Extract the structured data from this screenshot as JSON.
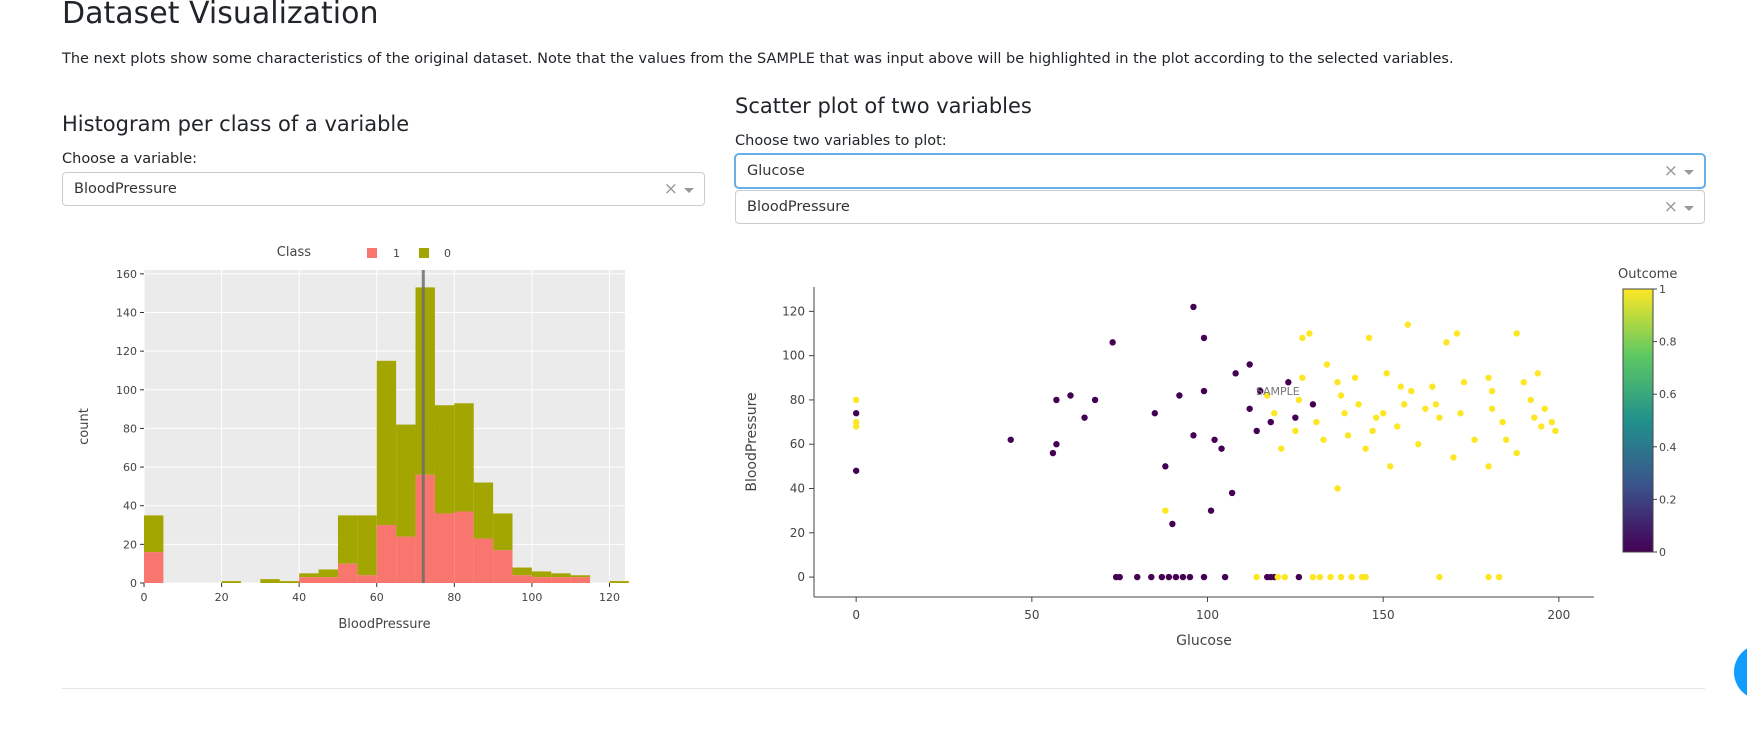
{
  "header": {
    "title": "Dataset Visualization",
    "intro": "The next plots show some characteristics of the original dataset. Note that the values from the SAMPLE that was input above will be highlighted in the plot according to the selected variables."
  },
  "histogram_section": {
    "title": "Histogram per class of a variable",
    "label": "Choose a variable:",
    "selected": "BloodPressure"
  },
  "scatter_section": {
    "title": "Scatter plot of two variables",
    "label": "Choose two variables to plot:",
    "selected_x": "Glucose",
    "selected_y": "BloodPressure"
  },
  "controls": {
    "clear_glyph": "×",
    "help_glyph": "?"
  },
  "colors": {
    "class_1": "#f8766d",
    "class_0": "#a3a500",
    "plot_bg": "#ebebeb",
    "focus": "#66afe9"
  },
  "chart_data": [
    {
      "type": "bar",
      "stacked": true,
      "xlabel": "BloodPressure",
      "ylabel": "count",
      "legend": {
        "title": "Class",
        "position": "top",
        "entries": [
          "1",
          "0"
        ]
      },
      "xlim": [
        0,
        124
      ],
      "ylim": [
        0,
        162
      ],
      "xticks": [
        0,
        20,
        40,
        60,
        80,
        100,
        120
      ],
      "yticks": [
        0,
        20,
        40,
        60,
        80,
        100,
        120,
        140,
        160
      ],
      "bin_width": 5,
      "bin_starts": [
        0,
        5,
        10,
        15,
        20,
        25,
        30,
        35,
        40,
        45,
        50,
        55,
        60,
        65,
        70,
        75,
        80,
        85,
        90,
        95,
        100,
        105,
        110,
        115,
        120
      ],
      "series": [
        {
          "name": "1",
          "values": [
            16,
            0,
            0,
            0,
            0,
            0,
            0,
            0,
            3,
            3,
            10,
            4,
            30,
            24,
            56,
            36,
            37,
            23,
            17,
            4,
            3,
            3,
            3,
            0,
            0
          ]
        },
        {
          "name": "0",
          "values": [
            19,
            0,
            0,
            0,
            1,
            0,
            2,
            1,
            2,
            4,
            25,
            31,
            85,
            58,
            97,
            56,
            56,
            29,
            19,
            4,
            3,
            2,
            1,
            0,
            1
          ]
        }
      ],
      "sample_marker_x": 72
    },
    {
      "type": "scatter",
      "xlabel": "Glucose",
      "ylabel": "BloodPressure",
      "xlim": [
        -12,
        210
      ],
      "ylim": [
        -9,
        131
      ],
      "xticks": [
        0,
        50,
        100,
        150,
        200
      ],
      "yticks": [
        0,
        20,
        40,
        60,
        80,
        100,
        120
      ],
      "colorbar": {
        "title": "Outcome",
        "ticks": [
          0,
          0.2,
          0.4,
          0.6,
          0.8,
          1
        ]
      },
      "sample_label": "SAMPLE",
      "sample_point": {
        "x": 120,
        "y": 84
      },
      "points": [
        [
          0,
          48,
          0
        ],
        [
          0,
          74,
          0
        ],
        [
          0,
          80,
          1
        ],
        [
          0,
          68,
          1
        ],
        [
          0,
          70,
          1
        ],
        [
          44,
          62,
          0
        ],
        [
          56,
          56,
          0
        ],
        [
          57,
          60,
          0
        ],
        [
          57,
          80,
          0
        ],
        [
          61,
          82,
          0
        ],
        [
          65,
          72,
          0
        ],
        [
          68,
          80,
          0
        ],
        [
          73,
          106,
          0
        ],
        [
          74,
          0,
          0
        ],
        [
          75,
          0,
          0
        ],
        [
          80,
          0,
          0
        ],
        [
          84,
          0,
          0
        ],
        [
          87,
          0,
          0
        ],
        [
          89,
          0,
          0
        ],
        [
          91,
          0,
          0
        ],
        [
          93,
          0,
          0
        ],
        [
          95,
          0,
          0
        ],
        [
          99,
          0,
          0
        ],
        [
          105,
          0,
          0
        ],
        [
          117,
          0,
          0
        ],
        [
          118,
          0,
          0
        ],
        [
          119,
          0,
          0
        ],
        [
          126,
          0,
          0
        ],
        [
          96,
          122,
          0
        ],
        [
          101,
          30,
          0
        ],
        [
          107,
          38,
          0
        ],
        [
          99,
          108,
          0
        ],
        [
          88,
          50,
          0
        ],
        [
          90,
          24,
          0
        ],
        [
          88,
          30,
          1
        ],
        [
          112,
          76,
          0
        ],
        [
          115,
          84,
          0
        ],
        [
          123,
          88,
          0
        ],
        [
          112,
          96,
          0
        ],
        [
          99,
          84,
          0
        ],
        [
          108,
          92,
          0
        ],
        [
          114,
          66,
          0
        ],
        [
          104,
          58,
          0
        ],
        [
          96,
          64,
          0
        ],
        [
          118,
          70,
          0
        ],
        [
          125,
          72,
          0
        ],
        [
          102,
          62,
          0
        ],
        [
          130,
          78,
          0
        ],
        [
          92,
          82,
          0
        ],
        [
          85,
          74,
          0
        ],
        [
          130,
          0,
          1
        ],
        [
          132,
          0,
          1
        ],
        [
          135,
          0,
          1
        ],
        [
          138,
          0,
          1
        ],
        [
          141,
          0,
          1
        ],
        [
          144,
          0,
          1
        ],
        [
          145,
          0,
          1
        ],
        [
          166,
          0,
          1
        ],
        [
          180,
          0,
          1
        ],
        [
          183,
          0,
          1
        ],
        [
          114,
          0,
          1
        ],
        [
          120,
          0,
          1
        ],
        [
          122,
          0,
          1
        ],
        [
          137,
          40,
          1
        ],
        [
          157,
          114,
          1
        ],
        [
          168,
          106,
          1
        ],
        [
          171,
          110,
          1
        ],
        [
          180,
          90,
          1
        ],
        [
          188,
          110,
          1
        ],
        [
          192,
          80,
          1
        ],
        [
          196,
          76,
          1
        ],
        [
          198,
          70,
          1
        ],
        [
          199,
          66,
          1
        ],
        [
          181,
          84,
          1
        ],
        [
          173,
          88,
          1
        ],
        [
          165,
          78,
          1
        ],
        [
          155,
          86,
          1
        ],
        [
          148,
          72,
          1
        ],
        [
          142,
          90,
          1
        ],
        [
          138,
          82,
          1
        ],
        [
          129,
          110,
          1
        ],
        [
          127,
          108,
          1
        ],
        [
          146,
          108,
          1
        ],
        [
          150,
          74,
          1
        ],
        [
          154,
          68,
          1
        ],
        [
          162,
          76,
          1
        ],
        [
          176,
          62,
          1
        ],
        [
          184,
          70,
          1
        ],
        [
          190,
          88,
          1
        ],
        [
          160,
          60,
          1
        ],
        [
          145,
          58,
          1
        ],
        [
          140,
          64,
          1
        ],
        [
          134,
          96,
          1
        ],
        [
          126,
          80,
          1
        ],
        [
          131,
          70,
          1
        ],
        [
          137,
          88,
          1
        ],
        [
          158,
          84,
          1
        ],
        [
          172,
          74,
          1
        ],
        [
          181,
          76,
          1
        ],
        [
          195,
          68,
          1
        ],
        [
          188,
          56,
          1
        ],
        [
          180,
          50,
          1
        ],
        [
          170,
          54,
          1
        ],
        [
          152,
          50,
          1
        ],
        [
          143,
          78,
          1
        ],
        [
          125,
          66,
          1
        ],
        [
          119,
          74,
          1
        ],
        [
          133,
          62,
          1
        ],
        [
          147,
          66,
          1
        ],
        [
          166,
          72,
          1
        ],
        [
          185,
          62,
          1
        ],
        [
          194,
          92,
          1
        ],
        [
          193,
          72,
          1
        ],
        [
          164,
          86,
          1
        ],
        [
          151,
          92,
          1
        ],
        [
          121,
          58,
          1
        ],
        [
          117,
          82,
          1
        ],
        [
          127,
          90,
          1
        ],
        [
          139,
          74,
          1
        ],
        [
          156,
          78,
          1
        ]
      ]
    }
  ]
}
